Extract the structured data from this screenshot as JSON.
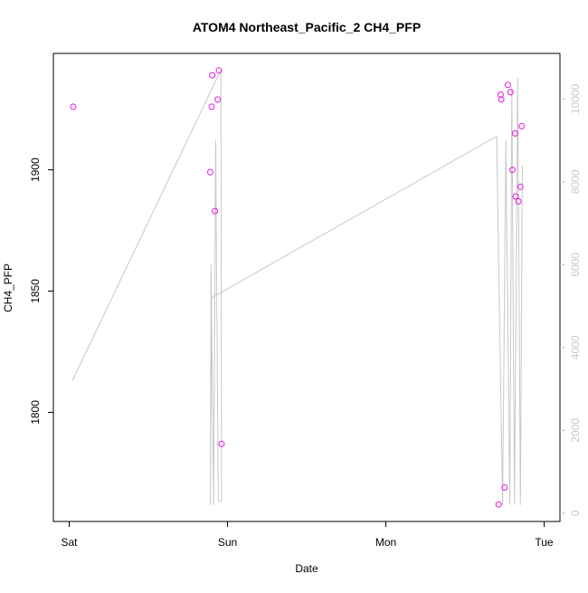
{
  "chart_data": {
    "type": "scatter",
    "title": "ATOM4 Northeast_Pacific_2 CH4_PFP",
    "xlabel": "Date",
    "ylabel": "CH4_PFP",
    "x_ticks": [
      {
        "t": 0,
        "label": "Sat"
      },
      {
        "t": 24,
        "label": "Sun"
      },
      {
        "t": 48,
        "label": "Mon"
      },
      {
        "t": 72,
        "label": "Tue"
      }
    ],
    "xlim": [
      -2.4,
      74.4
    ],
    "ylim": [
      1755,
      1948
    ],
    "y_ticks": [
      1800,
      1850,
      1900
    ],
    "y2lim": [
      -200,
      11100
    ],
    "y2_ticks": [
      0,
      2000,
      4000,
      6000,
      8000,
      10000
    ],
    "colors": {
      "points": "#e617e6",
      "line": "#c8c8c8",
      "frame": "#000000",
      "right_axis": "#c8c8c8"
    },
    "series": [
      {
        "kind": "points",
        "axis": "left",
        "x": [
          0.6,
          21.4,
          21.6,
          21.7,
          22.1,
          22.5,
          22.7,
          23.1,
          65.1,
          65.4,
          65.5,
          66.0,
          66.5,
          66.9,
          67.2,
          67.6,
          67.7,
          68.1,
          68.4,
          68.6
        ],
        "y": [
          1926,
          1899,
          1926,
          1939,
          1883,
          1929,
          1941,
          1787,
          1762,
          1931,
          1929,
          1769,
          1935,
          1932,
          1900,
          1915,
          1889,
          1887,
          1893,
          1918
        ]
      },
      {
        "kind": "line",
        "axis": "right",
        "x": [
          0.5,
          23.0,
          23.1,
          22.6,
          22.2,
          21.9,
          21.5,
          21.4,
          21.6,
          64.8,
          65.7,
          66.2,
          66.8,
          67.1,
          67.5,
          68.0,
          68.4,
          68.7
        ],
        "y": [
          3200,
          10700,
          300,
          300,
          9000,
          200,
          6000,
          200,
          5200,
          9100,
          200,
          9000,
          200,
          10300,
          200,
          10500,
          200,
          8400
        ]
      }
    ]
  }
}
